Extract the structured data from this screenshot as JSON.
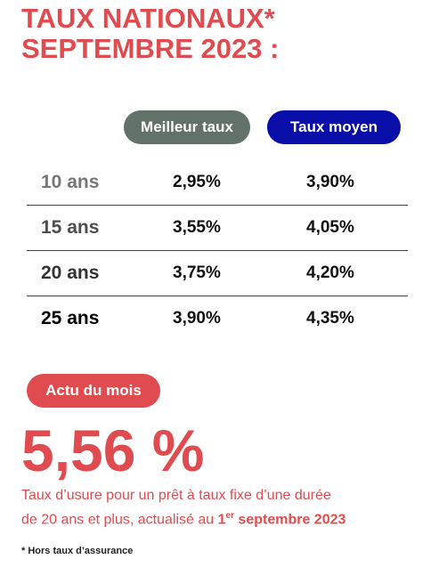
{
  "title": {
    "line1": "TAUX NATIONAUX*",
    "line2": "SEPTEMBRE 2023 :"
  },
  "headers": {
    "best": "Meilleur taux",
    "average": "Taux moyen"
  },
  "rates": [
    {
      "duration": "10 ans",
      "best": "2,95%",
      "average": "3,90%"
    },
    {
      "duration": "15 ans",
      "best": "3,55%",
      "average": "4,05%"
    },
    {
      "duration": "20 ans",
      "best": "3,75%",
      "average": "4,20%"
    },
    {
      "duration": "25 ans",
      "best": "3,90%",
      "average": "4,35%"
    }
  ],
  "news": {
    "badge": "Actu du mois",
    "value": "5,56 %",
    "desc_line1": "Taux d’usure pour un prêt à taux fixe d’une durée",
    "desc_line2_start": "de 20 ans et plus, actualisé au",
    "desc_day": "1",
    "desc_sup": "er",
    "desc_bold": "septembre 2023"
  },
  "footnote": "* Hors taux d’assurance",
  "colors": {
    "accent_red": "#e04b4f",
    "best_pill": "#637269",
    "average_pill": "#0a0ea8"
  }
}
